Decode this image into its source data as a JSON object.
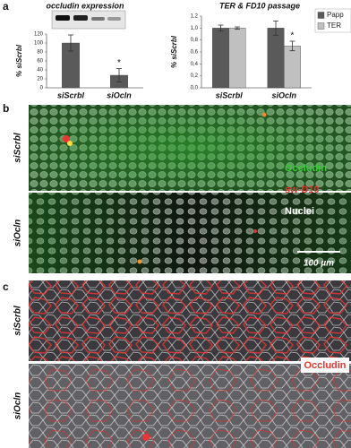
{
  "figure": {
    "panels": [
      "a",
      "b",
      "c"
    ],
    "b": {
      "rows": [
        "siScrbl",
        "siOcln"
      ],
      "channels": [
        "Occludin",
        "sw-D10",
        "Nuclei"
      ],
      "scale": "100 µm"
    },
    "c": {
      "rows": [
        "siScrbl",
        "siOcln"
      ],
      "channel": "Occludin"
    }
  },
  "chart_data": [
    {
      "type": "bar",
      "title": "occludin expression",
      "y_label": "% siScrbl",
      "categories": [
        "siScrbl",
        "siOcln"
      ],
      "values": [
        100,
        28
      ],
      "errors": [
        18,
        15
      ],
      "color": "#5a5a5a",
      "annotation": "*",
      "ylim": [
        0,
        120
      ],
      "yticks": [
        0,
        20,
        40,
        60,
        80,
        100,
        120
      ],
      "grid": false
    },
    {
      "type": "bar",
      "title": "TER & FD10 passage",
      "y_label": "% siScrbl",
      "categories": [
        "siScrbl",
        "siOcln"
      ],
      "series": [
        {
          "name": "Papp",
          "color": "#5a5a5a",
          "values": [
            1.0,
            1.0
          ],
          "errors": [
            0.05,
            0.12
          ]
        },
        {
          "name": "TER",
          "color": "#c0c0c0",
          "values": [
            1.0,
            0.7
          ],
          "errors": [
            0.02,
            0.08
          ]
        }
      ],
      "annotation": "*",
      "ylim": [
        0,
        1.2
      ],
      "yticks": [
        {
          "value": 0,
          "label": "0,0"
        },
        {
          "value": 0.2,
          "label": "0,2"
        },
        {
          "value": 0.4,
          "label": "0,4"
        },
        {
          "value": 0.6,
          "label": "0,6"
        },
        {
          "value": 0.8,
          "label": "0,8"
        },
        {
          "value": 1.0,
          "label": "1,0"
        },
        {
          "value": 1.2,
          "label": "1,2"
        }
      ],
      "grid": false,
      "legend": "right"
    }
  ]
}
